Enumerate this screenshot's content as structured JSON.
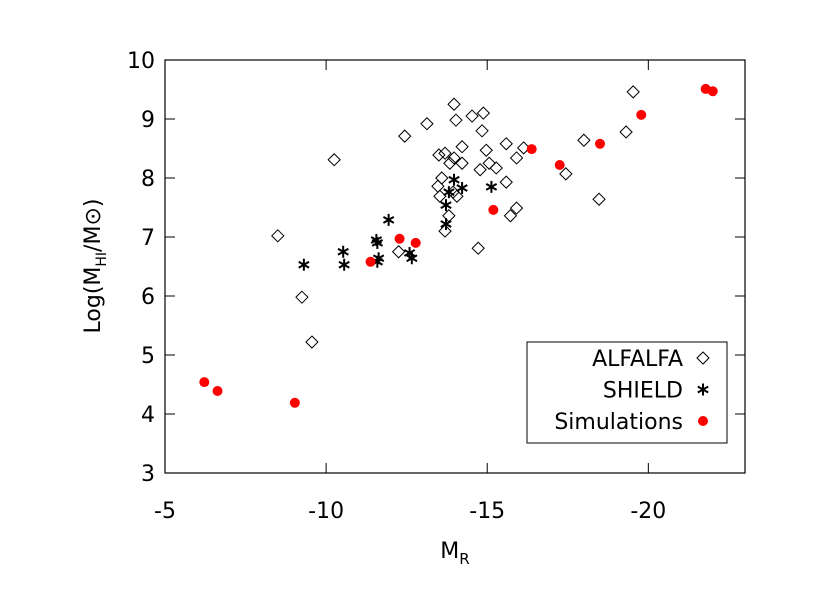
{
  "chart_data": {
    "type": "scatter",
    "x_label": [
      "M",
      "R"
    ],
    "y_label": [
      "Log(M",
      "HI",
      "/M⊙)"
    ],
    "xlim": [
      -5,
      -23
    ],
    "ylim": [
      3,
      10
    ],
    "xticks": [
      -5,
      -10,
      -15,
      -20
    ],
    "yticks": [
      3,
      4,
      5,
      6,
      7,
      8,
      9,
      10
    ],
    "legend": "lower right",
    "series": [
      {
        "name": "ALFALFA",
        "color": "#000000",
        "marker": "diamond",
        "x": [
          -8.5,
          -9.25,
          -9.56,
          -10.25,
          -12.44,
          -13.13,
          -12.25,
          -13.5,
          -13.69,
          -13.97,
          -14.03,
          -14.53,
          -14.88,
          -14.84,
          -14.22,
          -13.97,
          -13.84,
          -14.22,
          -13.59,
          -13.47,
          -13.53,
          -13.94,
          -14.06,
          -13.81,
          -13.69,
          -14.78,
          -14.97,
          -15.06,
          -15.28,
          -14.72,
          -15.59,
          -15.91,
          -15.59,
          -15.72,
          -15.91,
          -16.13,
          -17.44,
          -18.0,
          -18.47,
          -19.31,
          -19.53
        ],
        "y": [
          7.02,
          5.98,
          5.22,
          8.31,
          8.71,
          8.92,
          6.75,
          8.39,
          8.42,
          9.25,
          8.98,
          9.05,
          9.1,
          8.8,
          8.53,
          8.34,
          8.25,
          8.25,
          8.0,
          7.86,
          7.69,
          7.76,
          7.69,
          7.36,
          7.1,
          8.14,
          8.47,
          8.25,
          8.17,
          6.81,
          8.58,
          8.34,
          7.93,
          7.36,
          7.49,
          8.51,
          8.07,
          8.64,
          7.64,
          8.78,
          9.46
        ]
      },
      {
        "name": "SHIELD",
        "color": "#000000",
        "marker": "asterisk",
        "x": [
          -9.31,
          -10.53,
          -10.56,
          -11.56,
          -11.59,
          -11.63,
          -11.59,
          -11.94,
          -12.59,
          -12.66,
          -13.72,
          -13.72,
          -13.81,
          -13.97,
          -14.22,
          -15.13
        ],
        "y": [
          6.53,
          6.75,
          6.53,
          6.95,
          6.9,
          6.64,
          6.58,
          7.29,
          6.73,
          6.64,
          7.22,
          7.54,
          7.76,
          7.97,
          7.83,
          7.85
        ]
      },
      {
        "name": "Simulations",
        "color": "#ff0000",
        "marker": "circle",
        "x": [
          -6.22,
          -6.63,
          -9.03,
          -11.38,
          -12.28,
          -12.78,
          -15.19,
          -16.38,
          -17.25,
          -18.5,
          -19.78,
          -21.78,
          -22.0
        ],
        "y": [
          4.54,
          4.39,
          4.19,
          6.58,
          6.97,
          6.9,
          7.46,
          8.49,
          8.22,
          8.58,
          9.07,
          9.51,
          9.47
        ]
      }
    ]
  }
}
